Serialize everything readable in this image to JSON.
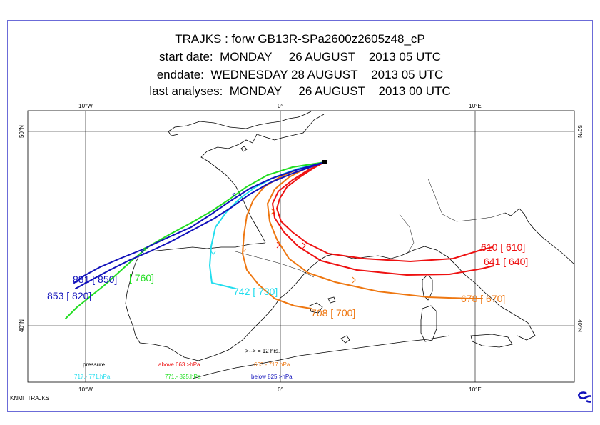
{
  "title": {
    "line1": "TRAJKS : forw GB13R-SPa2600z2605z48_cP",
    "line2": "start date:  MONDAY     26 AUGUST    2013 05 UTC",
    "line3": "enddate:  WEDNESDAY 28 AUGUST    2013 05 UTC",
    "line4": "last analyses:  MONDAY     26 AUGUST    2013 00 UTC"
  },
  "map_ticks": {
    "top": [
      "10°W",
      "0°",
      "10°E"
    ],
    "bottom": [
      "10°W",
      "0°",
      "10°E"
    ],
    "left": [
      "50°N",
      "40°N"
    ],
    "right": [
      "50°N",
      "40°N"
    ]
  },
  "legend": {
    "arrow_note": ">--> = 12 hrs.",
    "pressure_label": "pressure",
    "above": "above  663.>hPa",
    "orange": "663.-   717.hPa",
    "cyan": "717.-   771.hPa",
    "green": "771.-   825.hPa",
    "below": "below  825.>hPa"
  },
  "colors": {
    "red": "#ee1111",
    "orange": "#ee7711",
    "cyan": "#22ddee",
    "green": "#22dd22",
    "blue": "#1111bb",
    "frame": "#6b6bd8"
  },
  "trajectory_labels": {
    "red_a": "610 [ 610]",
    "red_b": "641 [ 640]",
    "orange_a": "678 [ 670]",
    "orange_b": "708 [ 700]",
    "cyan": "742 [ 730]",
    "green": "[ 760]",
    "blue_a": "881 [ 850]",
    "blue_b": "853 [ 820]"
  },
  "footer": "KNMI_TRAJKS"
}
